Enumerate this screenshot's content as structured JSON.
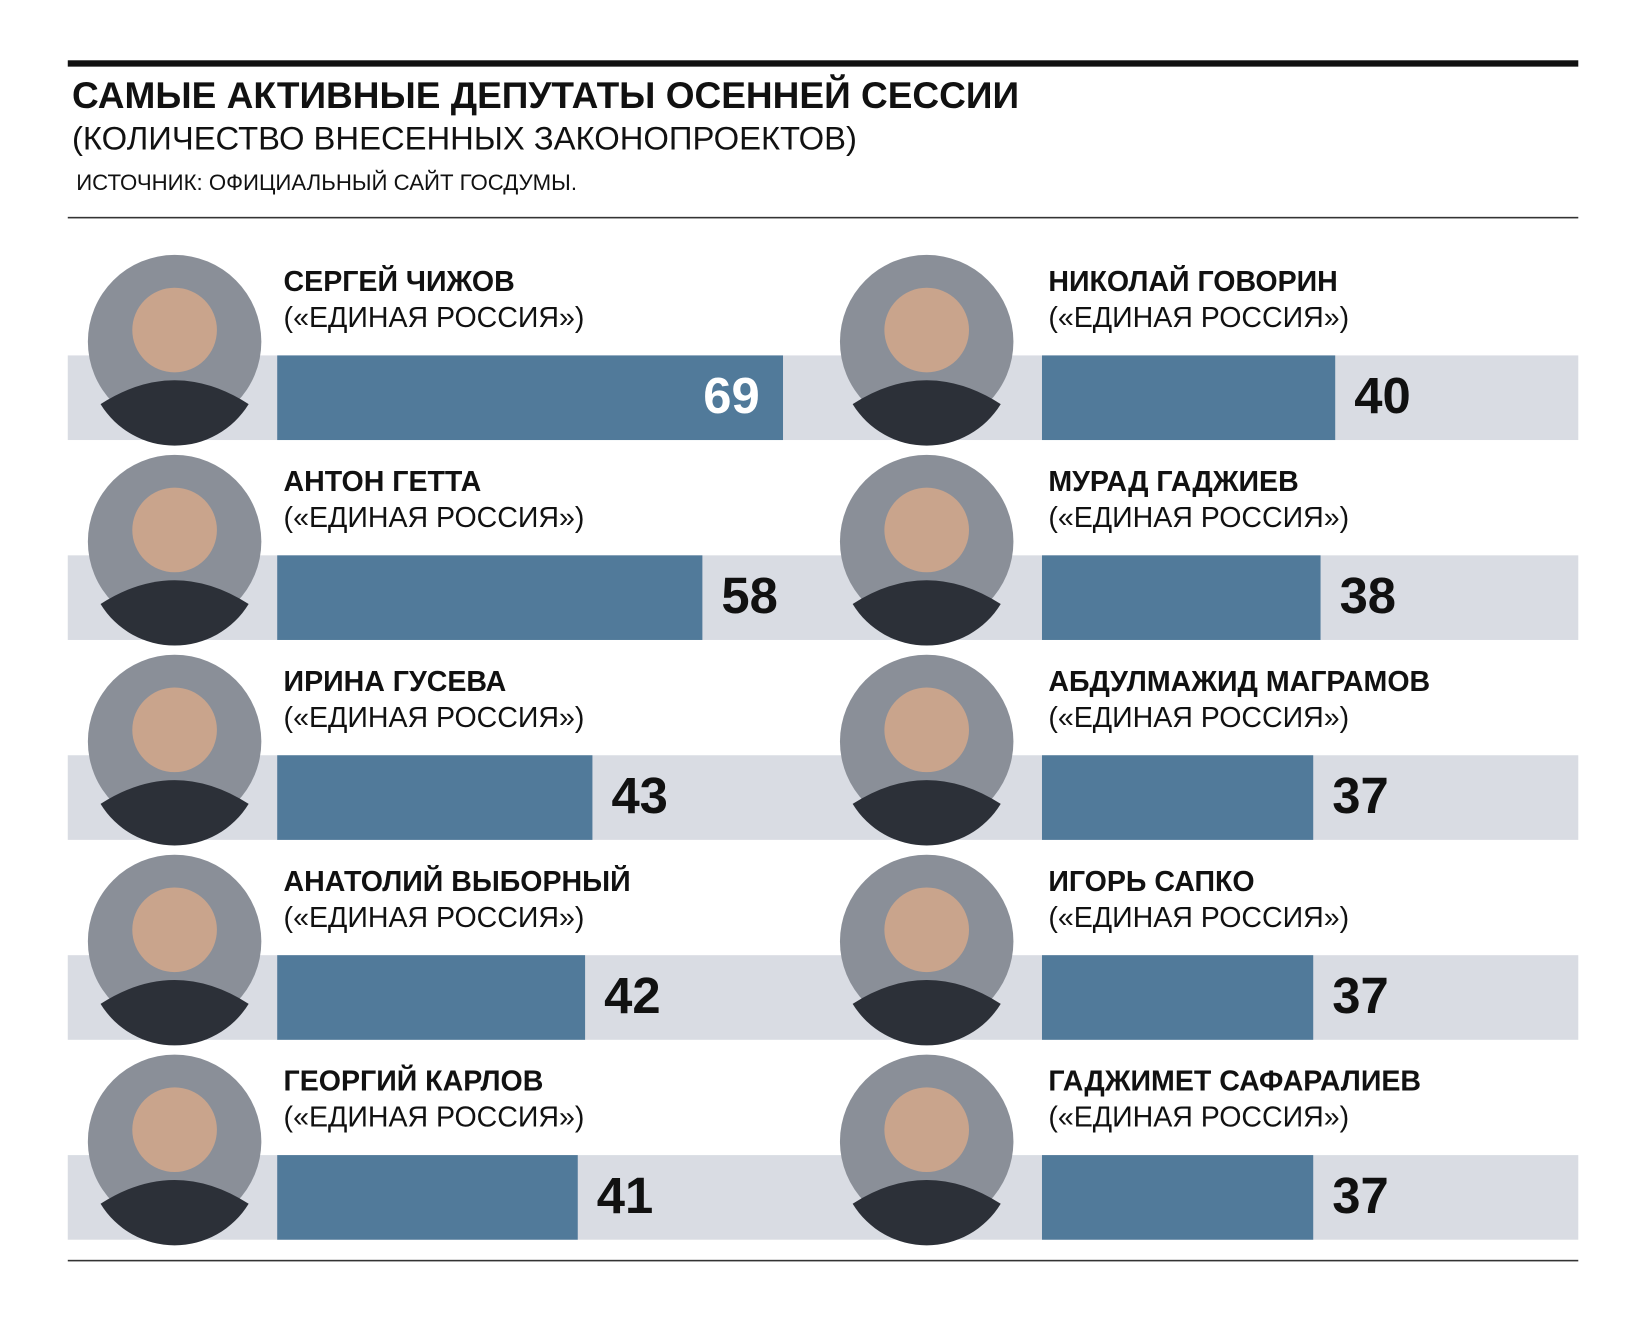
{
  "chart_data": {
    "type": "bar",
    "title": "САМЫЕ АКТИВНЫЕ ДЕПУТАТЫ ОСЕННЕЙ СЕССИИ",
    "subtitle": "(КОЛИЧЕСТВО ВНЕСЕННЫХ ЗАКОНОПРОЕКТОВ)",
    "source": "ИСТОЧНИК: ОФИЦИАЛЬНЫЙ САЙТ ГОСДУМЫ.",
    "categories": [
      "СЕРГЕЙ ЧИЖОВ",
      "АНТОН ГЕТТА",
      "ИРИНА ГУСЕВА",
      "АНАТОЛИЙ ВЫБОРНЫЙ",
      "ГЕОРГИЙ КАРЛОВ",
      "НИКОЛАЙ ГОВОРИН",
      "МУРАД ГАДЖИЕВ",
      "АБДУЛМАЖИД МАГРАМОВ",
      "ИГОРЬ САПКО",
      "ГАДЖИМЕТ САФАРАЛИЕВ"
    ],
    "parties": [
      "(«ЕДИНАЯ РОССИЯ»)",
      "(«ЕДИНАЯ РОССИЯ»)",
      "(«ЕДИНАЯ РОССИЯ»)",
      "(«ЕДИНАЯ РОССИЯ»)",
      "(«ЕДИНАЯ РОССИЯ»)",
      "(«ЕДИНАЯ РОССИЯ»)",
      "(«ЕДИНАЯ РОССИЯ»)",
      "(«ЕДИНАЯ РОССИЯ»)",
      "(«ЕДИНАЯ РОССИЯ»)",
      "(«ЕДИНАЯ РОССИЯ»)"
    ],
    "values": [
      69,
      58,
      43,
      42,
      41,
      40,
      38,
      37,
      37,
      37
    ],
    "color": "#517a9a"
  }
}
